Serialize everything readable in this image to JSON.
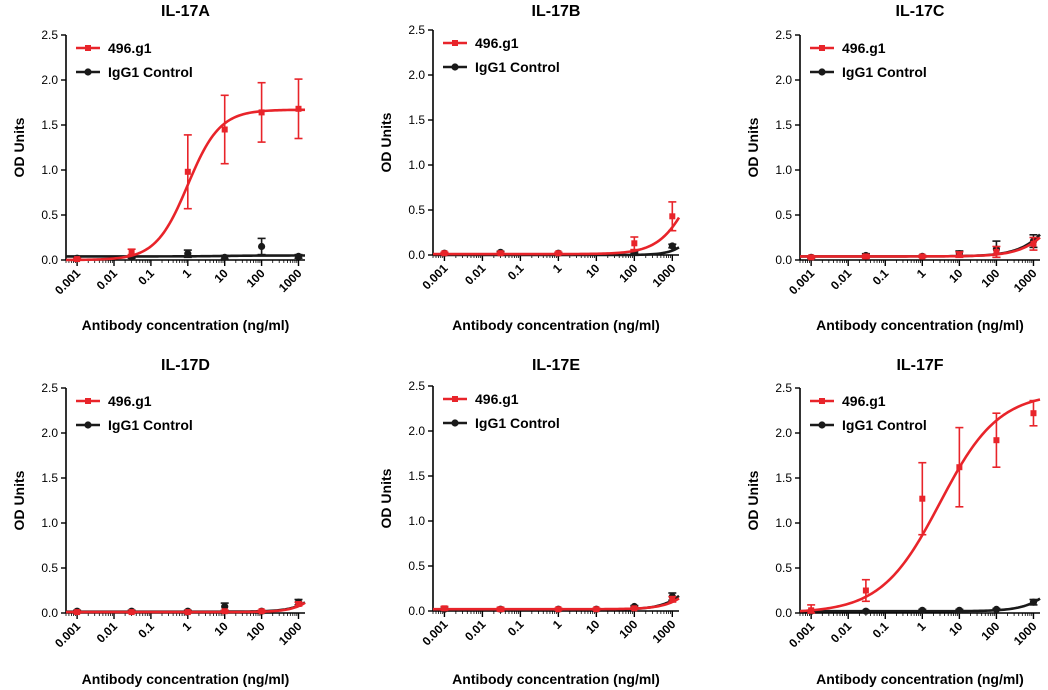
{
  "colors": {
    "treatment": "#e8242a",
    "control": "#1a1a1a"
  },
  "chart_data": [
    {
      "type": "line",
      "title": "IL-17A",
      "xscale": "log",
      "xlabel": "Antibody  concentration (ng/ml)",
      "ylabel": "OD Units",
      "ylim": [
        0,
        2.5
      ],
      "xlim": [
        0.0005,
        1500
      ],
      "yticks": [
        "0.0",
        "0.5",
        "1.0",
        "1.5",
        "2.0",
        "2.5"
      ],
      "xticks": [
        "0.001",
        "0.01",
        "0.1",
        "1",
        "10",
        "100",
        "1000"
      ],
      "legend": [
        "496.g1",
        "IgG1 Control"
      ],
      "series": [
        {
          "name": "496.g1",
          "fit": {
            "bottom": 0.0,
            "top": 1.67,
            "ec50": 1.0,
            "hill": 1.0
          },
          "x": [
            0.001,
            0.03,
            1,
            10,
            100,
            1000
          ],
          "y": [
            0.01,
            0.09,
            0.98,
            1.45,
            1.64,
            1.68
          ],
          "err": [
            0.01,
            0.03,
            0.41,
            0.38,
            0.33,
            0.33
          ]
        },
        {
          "name": "IgG1 Control",
          "fit": {
            "bottom": 0.04,
            "top": 0.05,
            "ec50": 10,
            "hill": 1.0
          },
          "x": [
            0.001,
            0.03,
            1,
            10,
            100,
            1000
          ],
          "y": [
            0.02,
            0.03,
            0.07,
            0.03,
            0.15,
            0.04
          ],
          "err": [
            0.01,
            0.01,
            0.04,
            0.02,
            0.09,
            0.02
          ]
        }
      ]
    },
    {
      "type": "line",
      "title": "IL-17B",
      "xscale": "log",
      "xlabel": "Antibody concentration (ng/ml)",
      "ylabel": "OD Units",
      "ylim": [
        0,
        2.5
      ],
      "xlim": [
        0.0005,
        1500
      ],
      "yticks": [
        "0.0",
        "0.5",
        "1.0",
        "1.5",
        "2.0",
        "2.5"
      ],
      "xticks": [
        "0.001",
        "0.01",
        "0.1",
        "1",
        "10",
        "100",
        "1000"
      ],
      "legend": [
        "496.g1",
        "IgG1 Control"
      ],
      "series": [
        {
          "name": "496.g1",
          "fit": {
            "bottom": 0.01,
            "top": 1.5,
            "ec50": 4000,
            "hill": 1.0
          },
          "x": [
            0.001,
            0.03,
            1,
            100,
            1000
          ],
          "y": [
            0.02,
            0.02,
            0.02,
            0.13,
            0.43
          ],
          "err": [
            0.01,
            0.01,
            0.01,
            0.07,
            0.16
          ]
        },
        {
          "name": "IgG1 Control",
          "fit": {
            "bottom": 0.0,
            "top": 0.6,
            "ec50": 5000,
            "hill": 1.5
          },
          "x": [
            0.001,
            0.03,
            1,
            100,
            1000
          ],
          "y": [
            0.02,
            0.03,
            0.02,
            0.03,
            0.1
          ],
          "err": [
            0.01,
            0.01,
            0.01,
            0.01,
            0.02
          ]
        }
      ]
    },
    {
      "type": "line",
      "title": "IL-17C",
      "xscale": "log",
      "xlabel": "Antibody concentration (ng/ml)",
      "ylabel": "OD Units",
      "ylim": [
        0,
        2.5
      ],
      "xlim": [
        0.0005,
        1500
      ],
      "yticks": [
        "0.0",
        "0.5",
        "1.0",
        "1.5",
        "2.0",
        "2.5"
      ],
      "xticks": [
        "0.001",
        "0.01",
        "0.1",
        "1",
        "10",
        "100",
        "1000"
      ],
      "legend": [
        "496.g1",
        "IgG1 Control"
      ],
      "series": [
        {
          "name": "496.g1",
          "fit": {
            "bottom": 0.04,
            "top": 1.2,
            "ec50": 8000,
            "hill": 0.9
          },
          "x": [
            0.001,
            0.03,
            1,
            10,
            100,
            1000
          ],
          "y": [
            0.03,
            0.04,
            0.04,
            0.06,
            0.09,
            0.18
          ],
          "err": [
            0.01,
            0.02,
            0.01,
            0.03,
            0.06,
            0.07
          ]
        },
        {
          "name": "IgG1 Control",
          "fit": {
            "bottom": 0.04,
            "top": 1.5,
            "ec50": 9000,
            "hill": 0.9
          },
          "x": [
            0.001,
            0.03,
            1,
            10,
            100,
            1000
          ],
          "y": [
            0.03,
            0.05,
            0.04,
            0.07,
            0.12,
            0.21
          ],
          "err": [
            0.01,
            0.02,
            0.01,
            0.03,
            0.09,
            0.07
          ]
        }
      ]
    },
    {
      "type": "line",
      "title": "IL-17D",
      "xscale": "log",
      "xlabel": "Antibody concentration (ng/ml)",
      "ylabel": "OD Units",
      "ylim": [
        0,
        2.5
      ],
      "xlim": [
        0.0005,
        1500
      ],
      "yticks": [
        "0.0",
        "0.5",
        "1.0",
        "1.5",
        "2.0",
        "2.5"
      ],
      "xticks": [
        "0.001",
        "0.01",
        "0.1",
        "1",
        "10",
        "100",
        "1000"
      ],
      "legend": [
        "496.g1",
        "IgG1 Control"
      ],
      "series": [
        {
          "name": "496.g1",
          "fit": {
            "bottom": 0.01,
            "top": 1.0,
            "ec50": 9000,
            "hill": 1.2
          },
          "x": [
            0.001,
            0.03,
            1,
            10,
            100,
            1000
          ],
          "y": [
            0.01,
            0.01,
            0.01,
            0.02,
            0.02,
            0.1
          ],
          "err": [
            0.01,
            0.01,
            0.01,
            0.01,
            0.01,
            0.02
          ]
        },
        {
          "name": "IgG1 Control",
          "fit": {
            "bottom": 0.015,
            "top": 1.0,
            "ec50": 9000,
            "hill": 1.2
          },
          "x": [
            0.001,
            0.03,
            1,
            10,
            100,
            1000
          ],
          "y": [
            0.02,
            0.02,
            0.02,
            0.07,
            0.02,
            0.12
          ],
          "err": [
            0.01,
            0.01,
            0.01,
            0.04,
            0.01,
            0.03
          ]
        }
      ]
    },
    {
      "type": "line",
      "title": "IL-17E",
      "xscale": "log",
      "xlabel": "Antibody concentration (ng/ml)",
      "ylabel": "OD Units",
      "ylim": [
        0,
        2.5
      ],
      "xlim": [
        0.0005,
        1500
      ],
      "yticks": [
        "0.0",
        "0.5",
        "1.0",
        "1.5",
        "2.0",
        "2.5"
      ],
      "xticks": [
        "0.001",
        "0.01",
        "0.1",
        "1",
        "10",
        "100",
        "1000"
      ],
      "legend": [
        "496.g1",
        "IgG1 Control"
      ],
      "series": [
        {
          "name": "496.g1",
          "fit": {
            "bottom": 0.02,
            "top": 1.0,
            "ec50": 9000,
            "hill": 1.1
          },
          "x": [
            0.001,
            0.03,
            1,
            10,
            100,
            1000
          ],
          "y": [
            0.03,
            0.02,
            0.02,
            0.02,
            0.03,
            0.13
          ],
          "err": [
            0.02,
            0.02,
            0.01,
            0.01,
            0.01,
            0.03
          ]
        },
        {
          "name": "IgG1 Control",
          "fit": {
            "bottom": 0.015,
            "top": 1.0,
            "ec50": 7000,
            "hill": 1.1
          },
          "x": [
            0.001,
            0.03,
            1,
            10,
            100,
            1000
          ],
          "y": [
            0.02,
            0.02,
            0.02,
            0.02,
            0.05,
            0.16
          ],
          "err": [
            0.01,
            0.01,
            0.01,
            0.01,
            0.01,
            0.04
          ]
        }
      ]
    },
    {
      "type": "line",
      "title": "IL-17F",
      "xscale": "log",
      "xlabel": "Antibody concentration (ng/ml)",
      "ylabel": "OD Units",
      "ylim": [
        0,
        2.5
      ],
      "xlim": [
        0.0005,
        1500
      ],
      "yticks": [
        "0.0",
        "0.5",
        "1.0",
        "1.5",
        "2.0",
        "2.5"
      ],
      "xticks": [
        "0.001",
        "0.01",
        "0.1",
        "1",
        "10",
        "100",
        "1000"
      ],
      "legend": [
        "496.g1",
        "IgG1 Control"
      ],
      "series": [
        {
          "name": "496.g1",
          "fit": {
            "bottom": 0.0,
            "top": 2.45,
            "ec50": 3.0,
            "hill": 0.55
          },
          "x": [
            0.001,
            0.03,
            1,
            10,
            100,
            1000
          ],
          "y": [
            0.03,
            0.25,
            1.27,
            1.62,
            1.92,
            2.22
          ],
          "err": [
            0.06,
            0.12,
            0.4,
            0.44,
            0.3,
            0.14
          ]
        },
        {
          "name": "IgG1 Control",
          "fit": {
            "bottom": 0.02,
            "top": 1.0,
            "ec50": 9000,
            "hill": 1.0
          },
          "x": [
            0.001,
            0.03,
            1,
            10,
            100,
            1000
          ],
          "y": [
            0.02,
            0.02,
            0.03,
            0.03,
            0.04,
            0.12
          ],
          "err": [
            0.01,
            0.01,
            0.01,
            0.01,
            0.01,
            0.03
          ]
        }
      ]
    }
  ]
}
